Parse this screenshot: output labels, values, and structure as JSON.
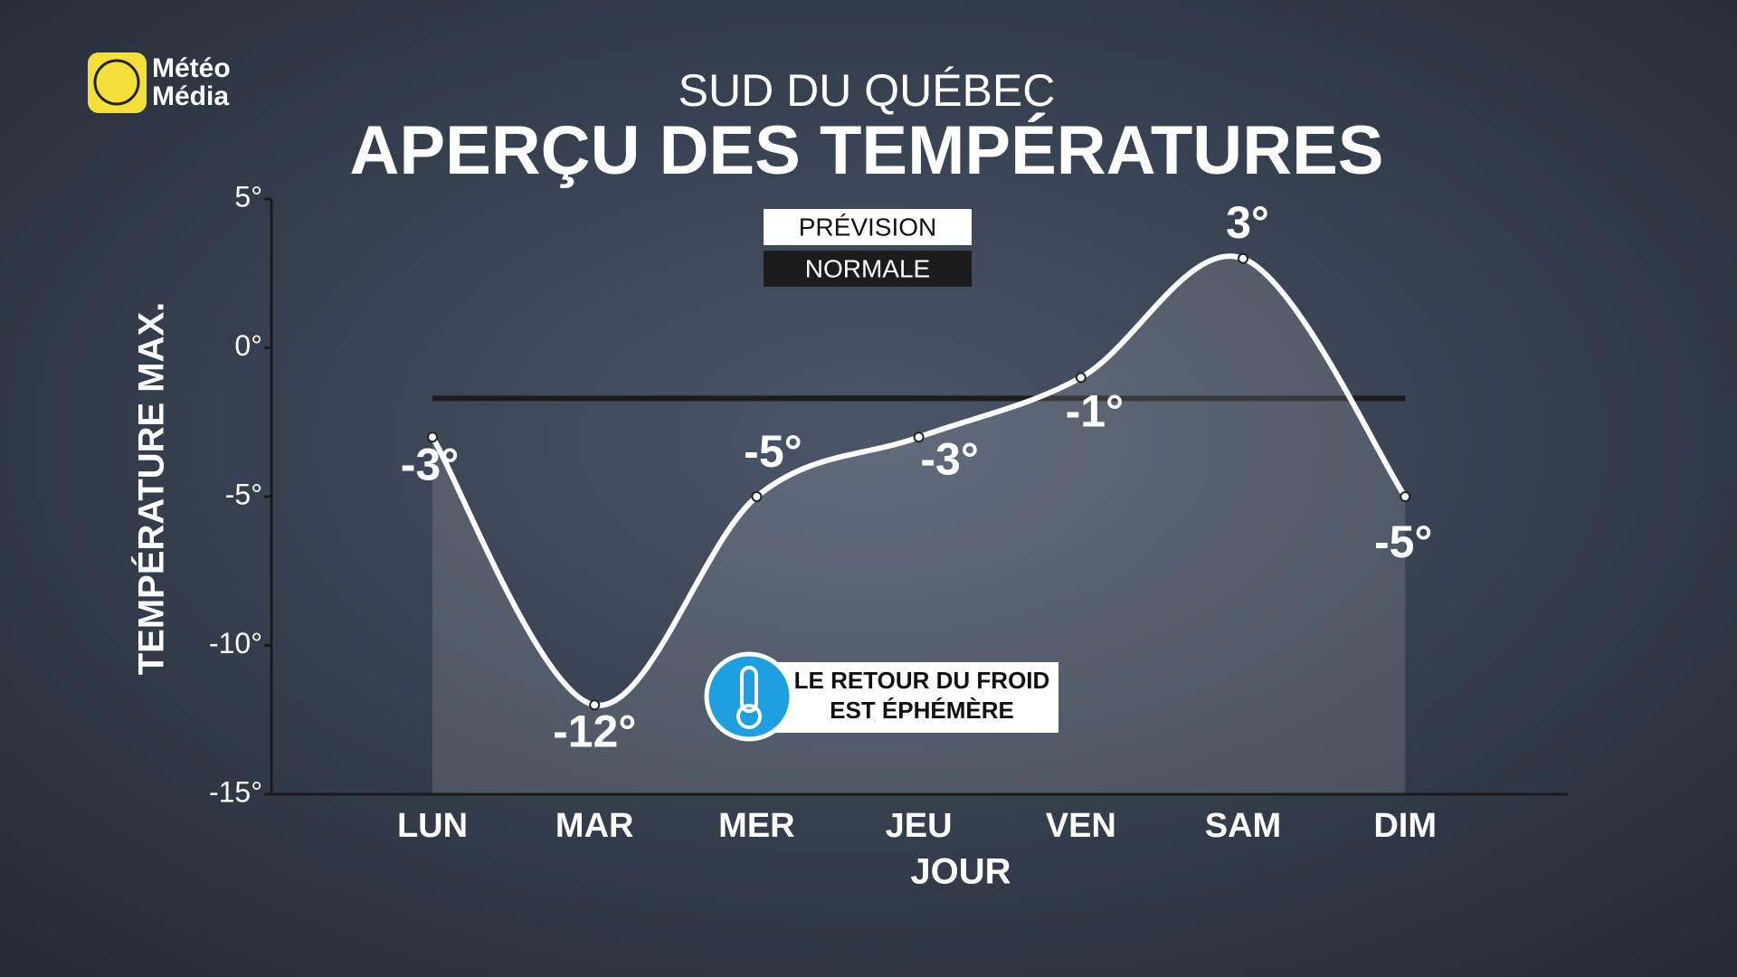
{
  "brand": [
    "Météo",
    "Média"
  ],
  "chart_data": {
    "type": "line",
    "title": "SUD DU QUÉBEC",
    "subtitle": "APERÇU DES TEMPÉRATURES",
    "y_label": "TEMPÉRATURE MAX.",
    "x_label": "JOUR",
    "categories": [
      "LUN",
      "MAR",
      "MER",
      "JEU",
      "VEN",
      "SAM",
      "DIM"
    ],
    "series": [
      {
        "name": "PRÉVISION",
        "color": "#ffffff",
        "values": [
          -3,
          -12,
          -5,
          -3,
          -1,
          3,
          -5
        ],
        "value_labels": [
          "-3°",
          "-12°",
          "-5°",
          "-3°",
          "-1°",
          "3°",
          "-5°"
        ]
      },
      {
        "name": "NORMALE",
        "color": "#1c1c1c",
        "values": [
          -1.7,
          -1.7,
          -1.7,
          -1.7,
          -1.7,
          -1.7,
          -1.7
        ]
      }
    ],
    "ylim": [
      -15,
      5
    ],
    "yticks": [
      {
        "value": -15,
        "label": "-15°"
      },
      {
        "value": -10,
        "label": "-10°"
      },
      {
        "value": -5,
        "label": "-5°"
      },
      {
        "value": 0,
        "label": "0°"
      },
      {
        "value": 5,
        "label": "5°"
      }
    ],
    "annotation": [
      "LE RETOUR DU FROID",
      "EST ÉPHÉMÈRE"
    ]
  }
}
